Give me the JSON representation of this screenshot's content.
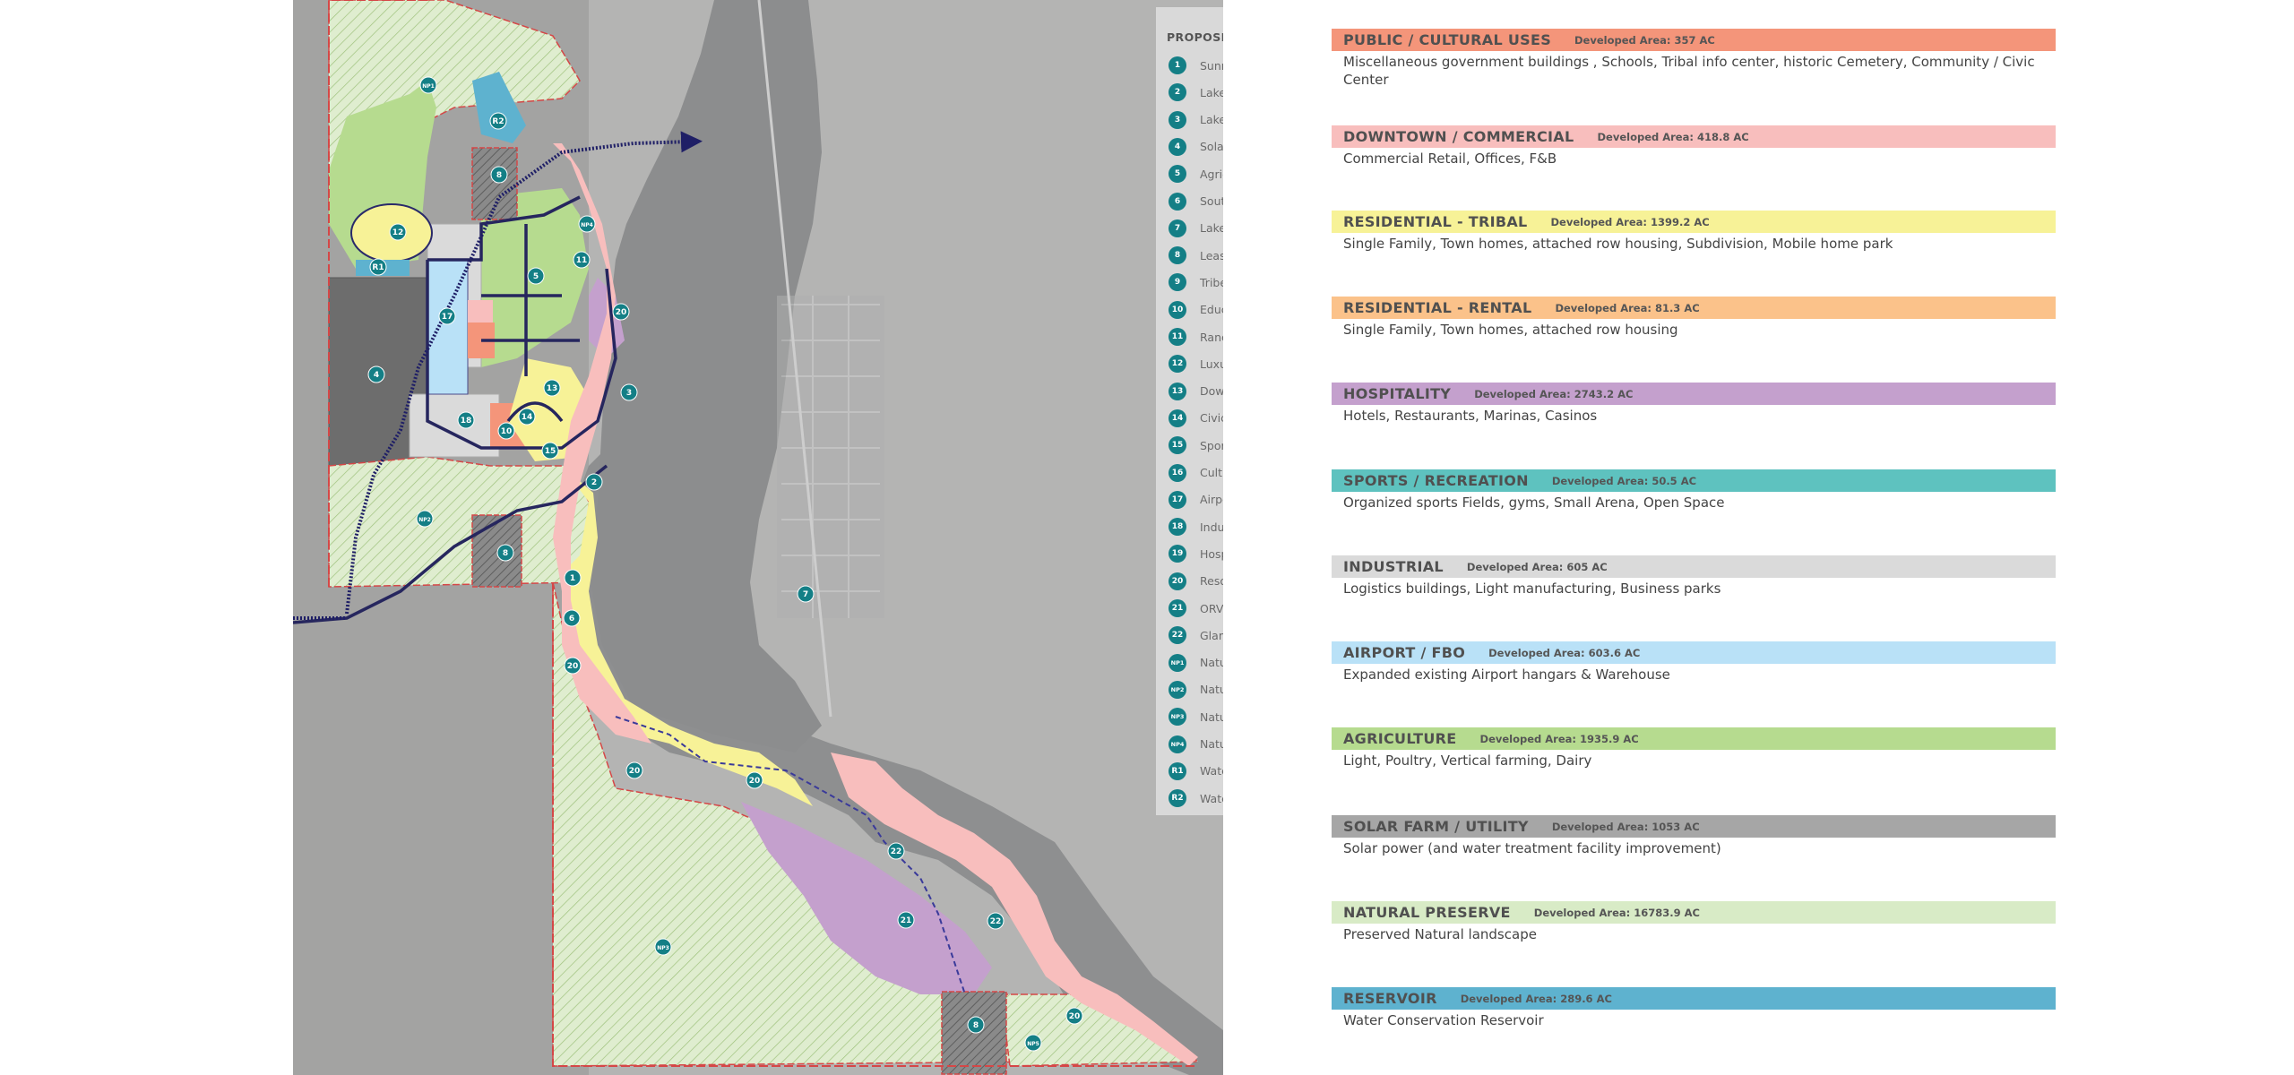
{
  "legend": {
    "title": "PROPOSED LAND USE",
    "items": [
      {
        "num": "1",
        "label": "Sunrise District Redevelopment"
      },
      {
        "num": "2",
        "label": "Lakeside New Residential Community"
      },
      {
        "num": "3",
        "label": "Lakeside Existing Community Redevelopment"
      },
      {
        "num": "4",
        "label": "Solar Farm"
      },
      {
        "num": "5",
        "label": "Agricultural"
      },
      {
        "num": "6",
        "label": "South Segment Development (phases)"
      },
      {
        "num": "7",
        "label": "Lake Havana Landing Ferry Boat Terminal Area Parcel"
      },
      {
        "num": "8",
        "label": "Lease Land"
      },
      {
        "num": "9",
        "label": "Tribe Housing / Rental Housing"
      },
      {
        "num": "10",
        "label": "Education"
      },
      {
        "num": "11",
        "label": "Ranchette"
      },
      {
        "num": "12",
        "label": "Luxury Tribe Housing"
      },
      {
        "num": "13",
        "label": "Downtown Commercial"
      },
      {
        "num": "14",
        "label": "Civic / Government"
      },
      {
        "num": "15",
        "label": "Sports / Recreation"
      },
      {
        "num": "16",
        "label": "Culture Center / Heritage Park"
      },
      {
        "num": "17",
        "label": "Airport / FBO / Hangar"
      },
      {
        "num": "18",
        "label": "Industrial / Office Park"
      },
      {
        "num": "19",
        "label": "Hospital / MOB's"
      },
      {
        "num": "20",
        "label": "Resort / Hospitality"
      },
      {
        "num": "21",
        "label": "ORV Park"
      },
      {
        "num": "22",
        "label": "Glamping / Camp Grounds"
      },
      {
        "num": "NP1",
        "label": "Nature Preserve"
      },
      {
        "num": "NP2",
        "label": "Nature Preserve"
      },
      {
        "num": "NP3",
        "label": "Nature Preserve"
      },
      {
        "num": "NP4",
        "label": "Nature Preserve (not on reservation land)"
      },
      {
        "num": "R1",
        "label": "Water Reservoir / Swale"
      },
      {
        "num": "R2",
        "label": "Water Reservoir"
      }
    ]
  },
  "categories": [
    {
      "name": "PUBLIC / CULTURAL USES",
      "area": "Developed Area: 357 AC",
      "color": "#f4957a",
      "description": "Miscellaneous government buildings , Schools, Tribal info center, historic Cemetery, Community / Civic Center"
    },
    {
      "name": "DOWNTOWN / COMMERCIAL",
      "area": "Developed Area: 418.8 AC",
      "color": "#f8bebd",
      "description": "Commercial Retail, Offices, F&B"
    },
    {
      "name": "RESIDENTIAL - TRIBAL",
      "area": "Developed Area: 1399.2 AC",
      "color": "#f7f297",
      "description": "Single Family, Town homes, attached row housing, Subdivision,  Mobile home park"
    },
    {
      "name": "RESIDENTIAL - RENTAL",
      "area": "Developed Area: 81.3 AC",
      "color": "#fbc28a",
      "description": "Single Family, Town homes, attached row housing"
    },
    {
      "name": "HOSPITALITY",
      "area": "Developed Area: 2743.2 AC",
      "color": "#c4a0cd",
      "description": "Hotels, Restaurants, Marinas, Casinos"
    },
    {
      "name": "SPORTS / RECREATION",
      "area": "Developed Area: 50.5 AC",
      "color": "#5ec2bf",
      "description": "Organized sports Fields, gyms, Small Arena, Open Space"
    },
    {
      "name": "INDUSTRIAL",
      "area": "Developed Area: 605 AC",
      "color": "#dadada",
      "description": "Logistics buildings, Light manufacturing, Business parks"
    },
    {
      "name": "AIRPORT / FBO",
      "area": "Developed Area: 603.6 AC",
      "color": "#b9e1f7",
      "description": "Expanded existing Airport hangars & Warehouse"
    },
    {
      "name": "AGRICULTURE",
      "area": "Developed Area: 1935.9 AC",
      "color": "#b6db8f",
      "description": "Light, Poultry, Vertical farming, Dairy"
    },
    {
      "name": "SOLAR FARM / UTILITY",
      "area": "Developed Area: 1053 AC",
      "color": "#a6a6a6",
      "description": "Solar power (and water treatment facility improvement)"
    },
    {
      "name": "NATURAL PRESERVE",
      "area": "Developed Area: 16783.9 AC",
      "color": "#d8ebc6",
      "description": "Preserved Natural landscape"
    },
    {
      "name": "RESERVOIR",
      "area": "Developed Area: 289.6 AC",
      "color": "#5eb2cf",
      "description": "Water Conservation Reservoir"
    }
  ],
  "map_markers": [
    "NP1",
    "R2",
    "8",
    "NP4",
    "11",
    "R1",
    "12",
    "5",
    "20",
    "17",
    "4",
    "3",
    "13",
    "14",
    "18",
    "10",
    "15",
    "2",
    "NP2",
    "8",
    "1",
    "6",
    "7",
    "20",
    "20",
    "20",
    "22",
    "21",
    "22",
    "NP3",
    "20",
    "8",
    "NP5"
  ]
}
